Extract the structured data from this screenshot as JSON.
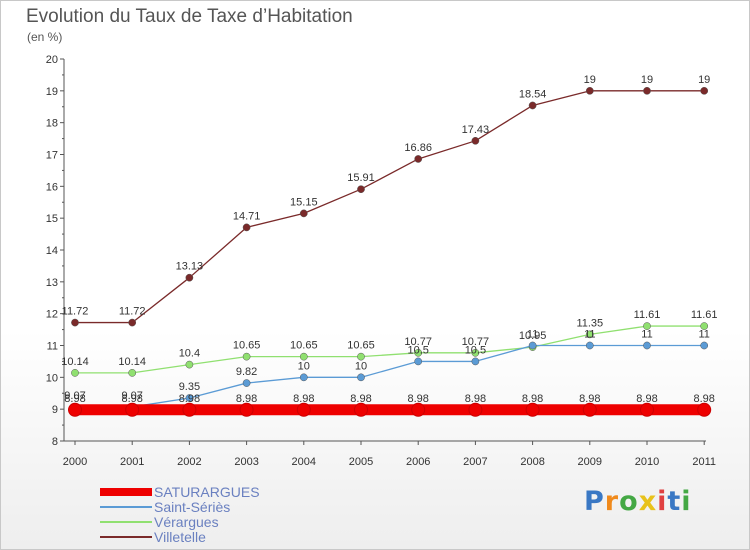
{
  "header": {
    "title": "Evolution du Taux de Taxe d’Habitation",
    "unit": "(en %)"
  },
  "logo": {
    "text": "Proxiti",
    "letters": [
      {
        "ch": "P",
        "color": "#3a78c4"
      },
      {
        "ch": "r",
        "color": "#f08a1c"
      },
      {
        "ch": "o",
        "color": "#44a844"
      },
      {
        "ch": "x",
        "color": "#e8c21a"
      },
      {
        "ch": "i",
        "color": "#e04040"
      },
      {
        "ch": "t",
        "color": "#3a78c4"
      },
      {
        "ch": "i",
        "color": "#44a844"
      }
    ]
  },
  "chart_data": {
    "type": "line",
    "title": "Evolution du Taux de Taxe d’Habitation",
    "ylabel": "(en %)",
    "xlabel": "",
    "x": [
      "2000",
      "2001",
      "2002",
      "2003",
      "2004",
      "2005",
      "2006",
      "2007",
      "2008",
      "2009",
      "2010",
      "2011"
    ],
    "ylim": [
      8,
      20
    ],
    "yticks": [
      8,
      9,
      10,
      11,
      12,
      13,
      14,
      15,
      16,
      17,
      18,
      19,
      20
    ],
    "grid": false,
    "legend": "bottom-left",
    "series": [
      {
        "name": "SATURARGUES",
        "color": "#ee0000",
        "values": [
          8.98,
          8.98,
          8.98,
          8.98,
          8.98,
          8.98,
          8.98,
          8.98,
          8.98,
          8.98,
          8.98,
          8.98
        ]
      },
      {
        "name": "Saint-Sériès",
        "color": "#5b9bd5",
        "values": [
          9.07,
          9.07,
          9.35,
          9.82,
          10,
          10,
          10.5,
          10.5,
          11,
          11,
          11,
          11
        ],
        "labels": [
          "9.07",
          "9.07",
          "9.35",
          "9.82",
          "10",
          "10",
          "10.5",
          "10.5",
          "11",
          "11",
          "11",
          "11"
        ]
      },
      {
        "name": "Vérargues",
        "color": "#90e070",
        "values": [
          10.14,
          10.14,
          10.4,
          10.65,
          10.65,
          10.65,
          10.77,
          10.77,
          10.95,
          11.35,
          11.61,
          11.61
        ]
      },
      {
        "name": "Villetelle",
        "color": "#7a2a2a",
        "values": [
          11.72,
          11.72,
          13.13,
          14.71,
          15.15,
          15.91,
          16.86,
          17.43,
          18.54,
          19,
          19,
          19
        ]
      }
    ]
  }
}
